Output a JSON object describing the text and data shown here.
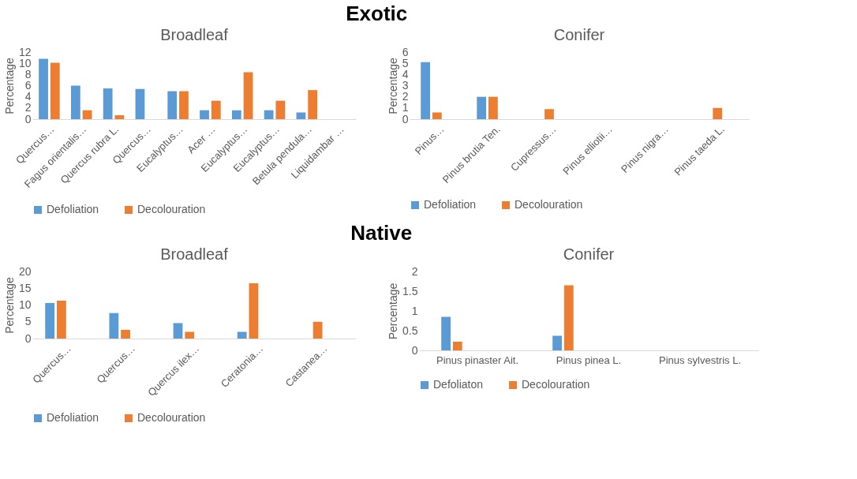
{
  "chart_data": [
    {
      "type": "bar",
      "title": "Broadleaf",
      "ylabel": "Percentage",
      "annotations": [
        "Exotic"
      ],
      "legend": "bottom",
      "grid": false,
      "categories": [
        "Quercus…",
        "Fagus orientalis…",
        "Quercus rubra L.",
        "Quercus…",
        "Eucalyptus…",
        "Acer …",
        "Eucalyptus…",
        "Eucalyptus…",
        "Betula pendula…",
        "Liquidambar …"
      ],
      "ylim": [
        0,
        12
      ],
      "yticks": [
        0,
        2,
        4,
        6,
        8,
        10,
        12
      ],
      "series": [
        {
          "name": "Defoliation",
          "color": "#5b9bd5",
          "values": [
            10.8,
            6.0,
            5.5,
            5.4,
            5.0,
            1.6,
            1.6,
            1.6,
            1.2,
            0
          ]
        },
        {
          "name": "Decolouration",
          "color": "#ed7d31",
          "values": [
            10.1,
            1.6,
            0.7,
            0,
            5.0,
            3.3,
            8.4,
            3.3,
            5.2,
            0
          ]
        }
      ]
    },
    {
      "type": "bar",
      "title": "Conifer",
      "ylabel": "Percentage",
      "legend": "bottom",
      "grid": false,
      "categories": [
        "Pinus…",
        "Pinus brutia Ten.",
        "Cupressus…",
        "Pinus elliotii…",
        "Pinus nigra…",
        "Pinus taeda L."
      ],
      "ylim": [
        0,
        6
      ],
      "yticks": [
        0,
        1,
        2,
        3,
        4,
        5,
        6
      ],
      "series": [
        {
          "name": "Defoliation",
          "color": "#5b9bd5",
          "values": [
            5.1,
            2.0,
            0,
            0,
            0,
            0
          ]
        },
        {
          "name": "Decolouration",
          "color": "#ed7d31",
          "values": [
            0.6,
            2.0,
            0.9,
            0,
            0,
            1.0
          ]
        }
      ]
    },
    {
      "type": "bar",
      "title": "Broadleaf",
      "ylabel": "Percentage",
      "annotations": [
        "Native"
      ],
      "legend": "bottom",
      "grid": false,
      "categories": [
        "Quercus…",
        "Quercus…",
        "Quercus ilex…",
        "Ceratonia…",
        "Castanea…"
      ],
      "ylim": [
        0,
        20
      ],
      "yticks": [
        0,
        5,
        10,
        15,
        20
      ],
      "series": [
        {
          "name": "Defoliation",
          "color": "#5b9bd5",
          "values": [
            10.6,
            7.6,
            4.6,
            2.0,
            0
          ]
        },
        {
          "name": "Decolouration",
          "color": "#ed7d31",
          "values": [
            11.3,
            2.6,
            2.0,
            16.5,
            5.0
          ]
        }
      ]
    },
    {
      "type": "bar",
      "title": "Conifer",
      "ylabel": "Percentage",
      "legend": "bottom",
      "grid": false,
      "categories": [
        "Pinus pinaster Ait.",
        "Pinus pinea L.",
        "Pinus sylvestris L."
      ],
      "ylim": [
        0,
        2
      ],
      "yticks": [
        0,
        0.5,
        1,
        1.5,
        2
      ],
      "series": [
        {
          "name": "Defoliaton",
          "color": "#5b9bd5",
          "values": [
            0.85,
            0.37,
            0
          ]
        },
        {
          "name": "Decolouration",
          "color": "#ed7d31",
          "values": [
            0.22,
            1.65,
            0
          ]
        }
      ]
    }
  ]
}
